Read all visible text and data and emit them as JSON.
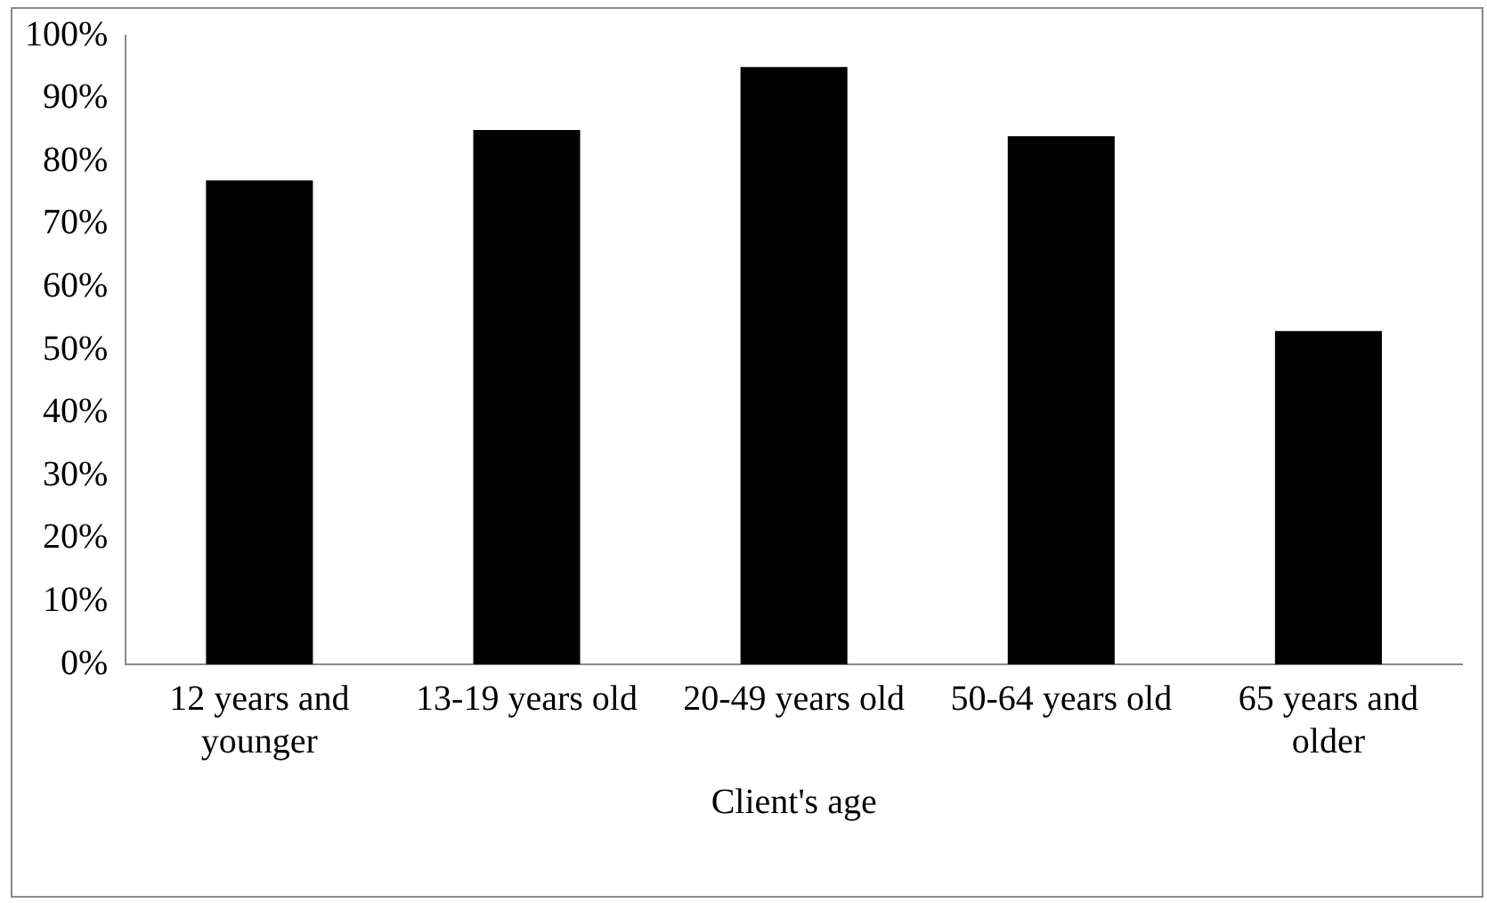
{
  "chart_data": {
    "type": "bar",
    "xlabel": "Client's age",
    "categories": [
      "12 years and younger",
      "13-19 years old",
      "20-49 years old",
      "50-64 years old",
      "65 years and older"
    ],
    "values": [
      77,
      85,
      95,
      84,
      53
    ],
    "color": "#000000",
    "ylim": [
      0,
      100
    ],
    "yticks": [
      {
        "value": 0,
        "label": "0%"
      },
      {
        "value": 10,
        "label": "10%"
      },
      {
        "value": 20,
        "label": "20%"
      },
      {
        "value": 30,
        "label": "30%"
      },
      {
        "value": 40,
        "label": "40%"
      },
      {
        "value": 50,
        "label": "50%"
      },
      {
        "value": 60,
        "label": "60%"
      },
      {
        "value": 70,
        "label": "70%"
      },
      {
        "value": 80,
        "label": "80%"
      },
      {
        "value": 90,
        "label": "90%"
      },
      {
        "value": 100,
        "label": "100%"
      }
    ],
    "grid": false,
    "legend": false
  }
}
